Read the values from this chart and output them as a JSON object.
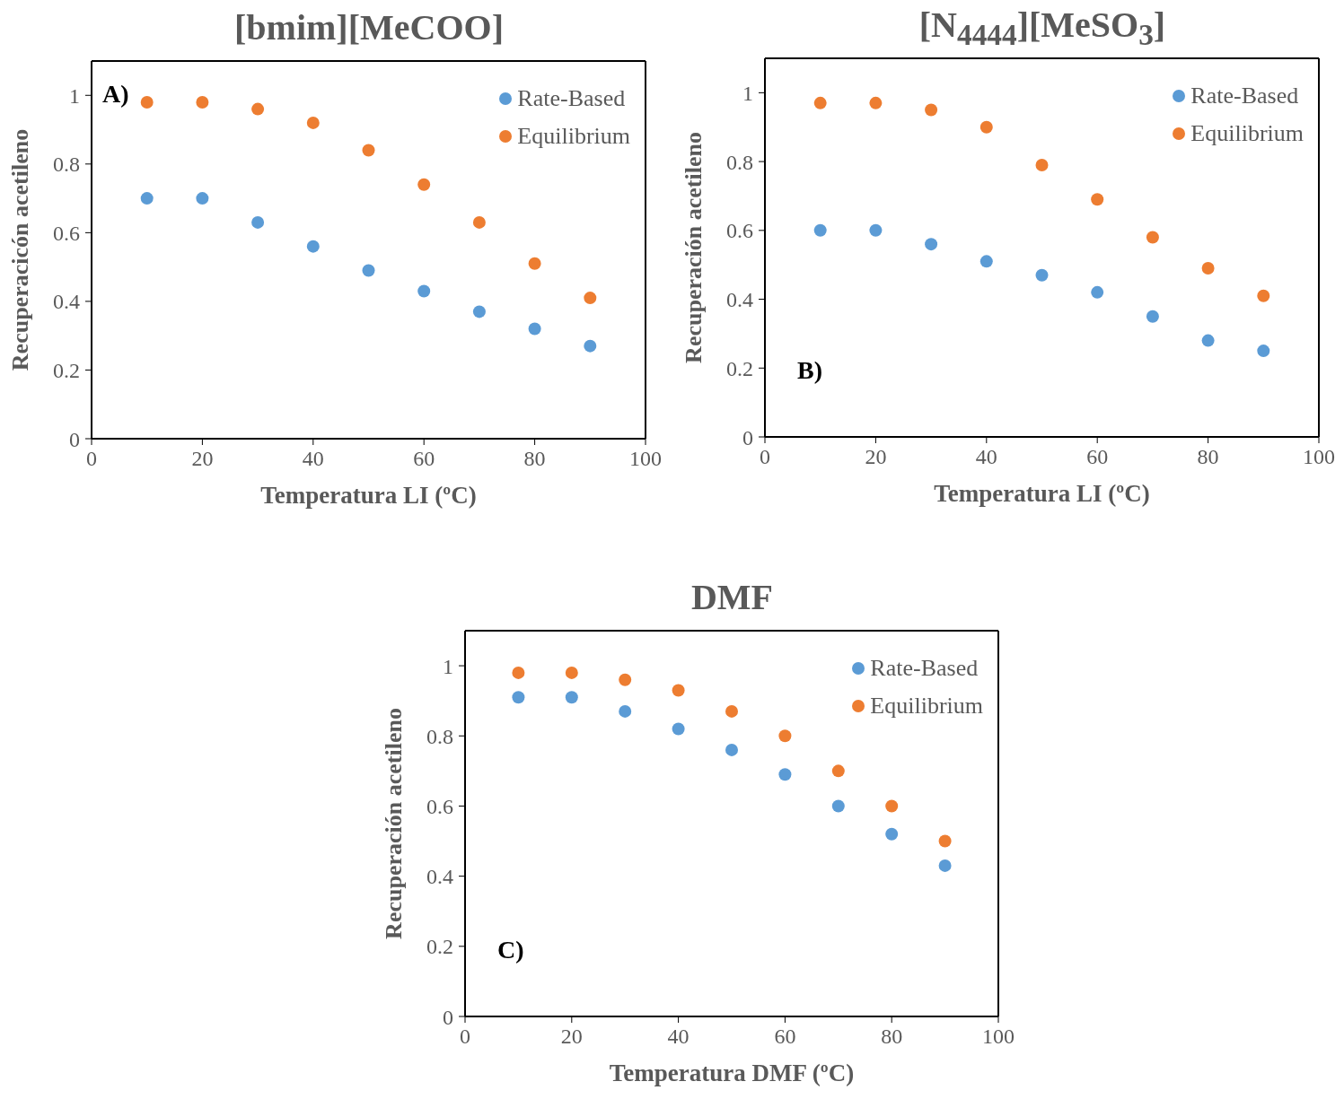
{
  "chart_data": [
    {
      "type": "scatter",
      "title": "[bmim][MeCOO]",
      "xlabel": "Temperatura LI (ºC)",
      "ylabel": "Recuperacicón acetileno",
      "annotations": [
        "A)"
      ],
      "x": [
        10,
        20,
        30,
        40,
        50,
        60,
        70,
        80,
        90
      ],
      "series": [
        {
          "name": "Rate-Based",
          "color": "#5b9bd5",
          "values": [
            0.7,
            0.7,
            0.63,
            0.56,
            0.49,
            0.43,
            0.37,
            0.32,
            0.27
          ]
        },
        {
          "name": "Equilibrium",
          "color": "#ed7d31",
          "values": [
            0.98,
            0.98,
            0.96,
            0.92,
            0.84,
            0.74,
            0.63,
            0.51,
            0.41
          ]
        }
      ],
      "xlim": [
        0,
        100
      ],
      "xticks": [
        0,
        20,
        40,
        60,
        80,
        100
      ],
      "ylim": [
        0,
        1.1
      ],
      "yticks": [
        0,
        0.2,
        0.4,
        0.6,
        0.8,
        1
      ],
      "legend": "top right",
      "marker": "circle"
    },
    {
      "type": "scatter",
      "title": "[N$_{4444}$][MeSO$_{3}$]",
      "xlabel": "Temperatura LI (ºC)",
      "ylabel": "Recuperación acetileno",
      "annotations": [
        "B)"
      ],
      "x": [
        10,
        20,
        30,
        40,
        50,
        60,
        70,
        80,
        90
      ],
      "series": [
        {
          "name": "Rate-Based",
          "color": "#5b9bd5",
          "values": [
            0.6,
            0.6,
            0.56,
            0.51,
            0.47,
            0.42,
            0.35,
            0.28,
            0.25
          ]
        },
        {
          "name": "Equilibrium",
          "color": "#ed7d31",
          "values": [
            0.97,
            0.97,
            0.95,
            0.9,
            0.79,
            0.69,
            0.58,
            0.49,
            0.41
          ]
        }
      ],
      "xlim": [
        0,
        100
      ],
      "xticks": [
        0,
        20,
        40,
        60,
        80,
        100
      ],
      "ylim": [
        0,
        1.1
      ],
      "yticks": [
        0,
        0.2,
        0.4,
        0.6,
        0.8,
        1
      ],
      "legend": "top right",
      "marker": "circle"
    },
    {
      "type": "scatter",
      "title": "DMF",
      "xlabel": "Temperatura DMF (ºC)",
      "ylabel": "Recuperación acetileno",
      "annotations": [
        "C)"
      ],
      "x": [
        10,
        20,
        30,
        40,
        50,
        60,
        70,
        80,
        90
      ],
      "series": [
        {
          "name": "Rate-Based",
          "color": "#5b9bd5",
          "values": [
            0.91,
            0.91,
            0.87,
            0.82,
            0.76,
            0.69,
            0.6,
            0.52,
            0.43
          ]
        },
        {
          "name": "Equilibrium",
          "color": "#ed7d31",
          "values": [
            0.98,
            0.98,
            0.96,
            0.93,
            0.87,
            0.8,
            0.7,
            0.6,
            0.5
          ]
        }
      ],
      "xlim": [
        0,
        100
      ],
      "xticks": [
        0,
        20,
        40,
        60,
        80,
        100
      ],
      "ylim": [
        0,
        1.1
      ],
      "yticks": [
        0,
        0.2,
        0.4,
        0.6,
        0.8,
        1
      ],
      "legend": "top right",
      "marker": "circle"
    }
  ]
}
